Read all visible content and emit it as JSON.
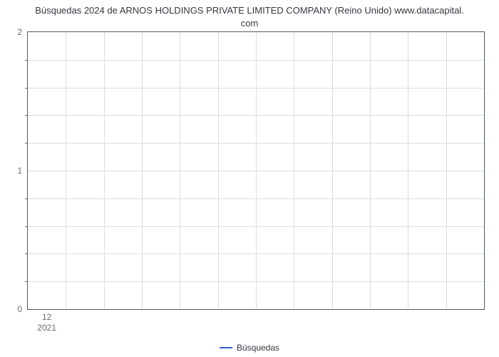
{
  "chart": {
    "type": "line",
    "title_line1": "Búsquedas 2024 de ARNOS HOLDINGS PRIVATE LIMITED COMPANY (Reino Unido) www.datacapital.",
    "title_line2": "com",
    "title_fontsize": 13,
    "title_color": "#333740",
    "background_color": "#ffffff",
    "border_color": "#4e5a66",
    "grid_color": "#d9dde2",
    "tick_label_color": "#666c74",
    "tick_fontsize": 12,
    "ylim": [
      0,
      2
    ],
    "ytick_major": [
      0,
      1,
      2
    ],
    "ytick_minor_between": 4,
    "x_categories_count": 12,
    "x_tick_label_top": "12",
    "x_tick_label_bottom": "2021",
    "x_tick_position_index": 0,
    "series": {
      "name": "Búsquedas",
      "color": "#2f5fe0",
      "data": []
    },
    "legend": {
      "label": "Búsquedas",
      "swatch_color": "#2f5fe0",
      "position": "bottom-center"
    }
  }
}
